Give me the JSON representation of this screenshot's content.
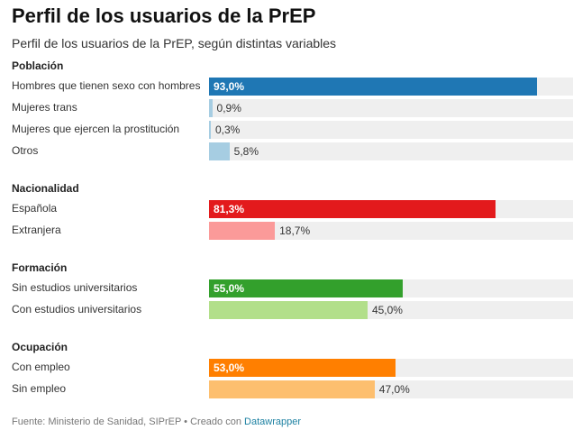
{
  "header": {
    "title": "Perfil de los usuarios de la PrEP",
    "subtitle": "Perfil de los usuarios de la PrEP, según distintas variables"
  },
  "chart_data": {
    "type": "bar",
    "orientation": "horizontal",
    "xlim": [
      0,
      100
    ],
    "value_suffix": "%",
    "groups": [
      {
        "name": "Población",
        "rows": [
          {
            "label": "Hombres que tienen sexo con hombres",
            "value": 93.0,
            "display": "93,0%",
            "color": "#1f77b4",
            "label_inside": true
          },
          {
            "label": "Mujeres trans",
            "value": 0.9,
            "display": "0,9%",
            "color": "#a6cde2",
            "label_inside": false
          },
          {
            "label": "Mujeres que ejercen la prostitución",
            "value": 0.3,
            "display": "0,3%",
            "color": "#a6cde2",
            "label_inside": false
          },
          {
            "label": "Otros",
            "value": 5.8,
            "display": "5,8%",
            "color": "#a6cde2",
            "label_inside": false
          }
        ]
      },
      {
        "name": "Nacionalidad",
        "rows": [
          {
            "label": "Española",
            "value": 81.3,
            "display": "81,3%",
            "color": "#e31a1c",
            "label_inside": true
          },
          {
            "label": "Extranjera",
            "value": 18.7,
            "display": "18,7%",
            "color": "#fb9a99",
            "label_inside": false
          }
        ]
      },
      {
        "name": "Formación",
        "rows": [
          {
            "label": "Sin estudios universitarios",
            "value": 55.0,
            "display": "55,0%",
            "color": "#33a02c",
            "label_inside": true
          },
          {
            "label": "Con estudios universitarios",
            "value": 45.0,
            "display": "45,0%",
            "color": "#b2df8a",
            "label_inside": false
          }
        ]
      },
      {
        "name": "Ocupación",
        "rows": [
          {
            "label": "Con empleo",
            "value": 53.0,
            "display": "53,0%",
            "color": "#ff7f00",
            "label_inside": true
          },
          {
            "label": "Sin empleo",
            "value": 47.0,
            "display": "47,0%",
            "color": "#fdbf6f",
            "label_inside": false
          }
        ]
      }
    ]
  },
  "footer": {
    "source": "Fuente: Ministerio de Sanidad, SIPrEP • Creado con ",
    "link": "Datawrapper"
  }
}
